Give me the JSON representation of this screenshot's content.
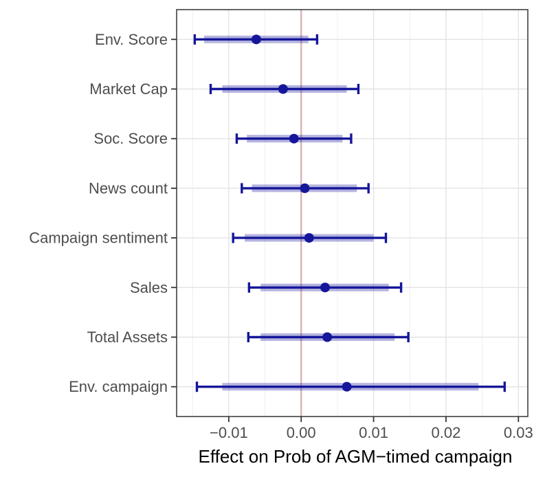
{
  "chart_data": {
    "type": "scatter",
    "subtype": "coefficient-forest-plot",
    "orientation": "horizontal",
    "title": "",
    "xlabel": "Effect on Prob of AGM−timed campaign",
    "ylabel": "",
    "xlim": [
      -0.0172,
      0.0313
    ],
    "x_major_ticks": [
      -0.01,
      0.0,
      0.01,
      0.02,
      0.03
    ],
    "x_tick_labels": [
      "−0.01",
      "0.00",
      "0.01",
      "0.02",
      "0.03"
    ],
    "x_minor_ticks": [
      -0.015,
      -0.005,
      0.005,
      0.015,
      0.025
    ],
    "reference_line_x": 0.0,
    "grid": "major+minor-x, major-y",
    "legend": "none",
    "categories": [
      "Env. Score",
      "Market Cap",
      "Soc. Score",
      "News count",
      "Campaign sentiment",
      "Sales",
      "Total Assets",
      "Env. campaign"
    ],
    "series": [
      {
        "label": "Env. Score",
        "estimate": -0.0062,
        "ci_outer": [
          -0.0147,
          0.0022
        ],
        "ci_inner": [
          -0.0134,
          0.001
        ]
      },
      {
        "label": "Market Cap",
        "estimate": -0.0025,
        "ci_outer": [
          -0.0125,
          0.0079
        ],
        "ci_inner": [
          -0.0109,
          0.0063
        ]
      },
      {
        "label": "Soc. Score",
        "estimate": -0.001,
        "ci_outer": [
          -0.0089,
          0.0069
        ],
        "ci_inner": [
          -0.0075,
          0.0057
        ]
      },
      {
        "label": "News count",
        "estimate": 0.0005,
        "ci_outer": [
          -0.0082,
          0.0093
        ],
        "ci_inner": [
          -0.0068,
          0.0077
        ]
      },
      {
        "label": "Campaign sentiment",
        "estimate": 0.0011,
        "ci_outer": [
          -0.0094,
          0.0117
        ],
        "ci_inner": [
          -0.0078,
          0.01
        ]
      },
      {
        "label": "Sales",
        "estimate": 0.0033,
        "ci_outer": [
          -0.0072,
          0.0138
        ],
        "ci_inner": [
          -0.0056,
          0.0121
        ]
      },
      {
        "label": "Total Assets",
        "estimate": 0.0036,
        "ci_outer": [
          -0.0073,
          0.0148
        ],
        "ci_inner": [
          -0.0056,
          0.0129
        ]
      },
      {
        "label": "Env. campaign",
        "estimate": 0.0063,
        "ci_outer": [
          -0.0144,
          0.0281
        ],
        "ci_inner": [
          -0.0109,
          0.0245
        ]
      }
    ],
    "colors": {
      "point": "#16169a",
      "outer_interval_line": "#16169a",
      "inner_interval_band": "#16169a",
      "inner_band_opacity": 0.32,
      "reference_line": "#c98b8b",
      "reference_line_opacity": 0.55,
      "grid_major": "#e3e3e3",
      "grid_minor": "#f0f0f0",
      "panel_border": "#333333",
      "axis_text": "#4d4d4d",
      "tick_mark": "#333333"
    }
  }
}
